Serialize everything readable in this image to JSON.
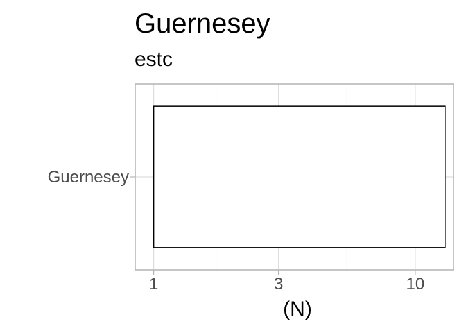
{
  "chart_data": {
    "type": "bar",
    "orientation": "horizontal",
    "title": "Guernesey",
    "subtitle": "estc",
    "xlabel": "(N)",
    "ylabel": "",
    "x_scale": "log10",
    "xlim": [
      0.85,
      14
    ],
    "x_ticks": [
      1,
      3,
      10
    ],
    "x_tick_labels": [
      "1",
      "3",
      "10"
    ],
    "categories": [
      "Guernesey"
    ],
    "values": [
      13
    ],
    "bar_base": 1,
    "grid": true,
    "legend": "none",
    "colors": {
      "bar_fill": "#ffffff",
      "bar_stroke": "#000000",
      "grid_major": "#dedede",
      "grid_minor": "#efefef",
      "panel_border": "#b3b3b3",
      "tick_text": "#4d4d4d"
    }
  }
}
